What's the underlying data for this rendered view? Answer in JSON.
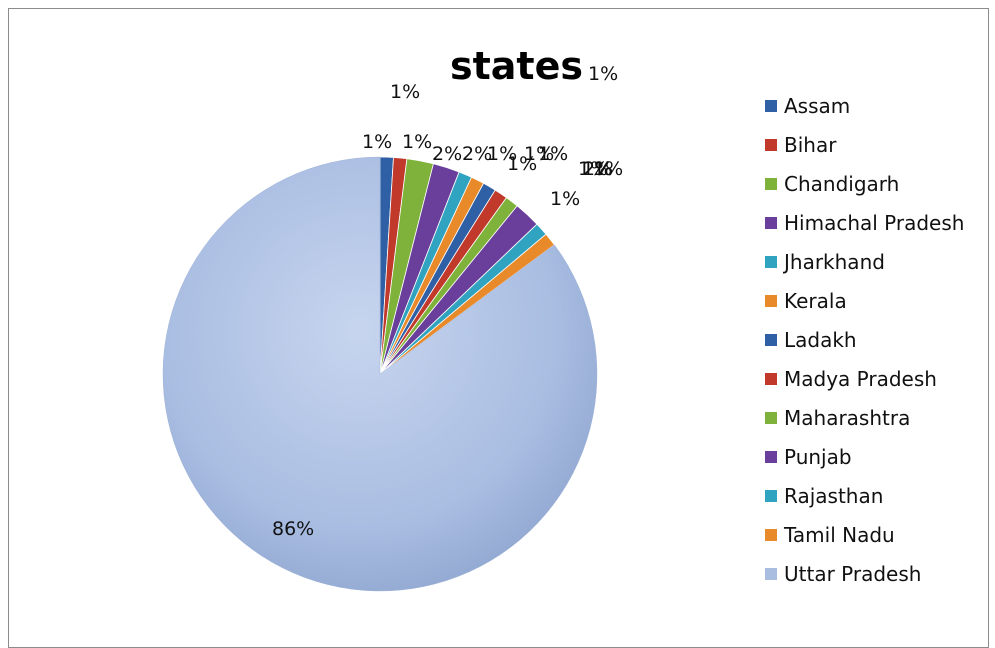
{
  "chart_data": {
    "type": "pie",
    "title": "states",
    "categories": [
      "Assam",
      "Bihar",
      "Chandigarh",
      "Himachal Pradesh",
      "Jharkhand",
      "Kerala",
      "Ladakh",
      "Madya Pradesh",
      "Maharashtra",
      "Punjab",
      "Rajasthan",
      "Tamil Nadu",
      "Uttar Pradesh"
    ],
    "values": [
      1,
      1,
      2,
      2,
      1,
      1,
      1,
      1,
      1,
      2,
      1,
      1,
      86
    ],
    "labels": [
      "1%",
      "1%",
      "2%",
      "2%",
      "1%",
      "1%",
      "1%",
      "1%",
      "1%",
      "2%",
      "1%",
      "1%",
      "86%"
    ],
    "colors": [
      "#2f5fa4",
      "#c0392b",
      "#7fb23a",
      "#6a3f9c",
      "#2fa3bf",
      "#e8892a",
      "#2f5fa4",
      "#c0392b",
      "#7fb23a",
      "#6a3f9c",
      "#2fa3bf",
      "#e8892a",
      "#a8bde0"
    ],
    "extra_labels": [
      "1%",
      "1%",
      "1%"
    ],
    "legend_position": "right"
  }
}
